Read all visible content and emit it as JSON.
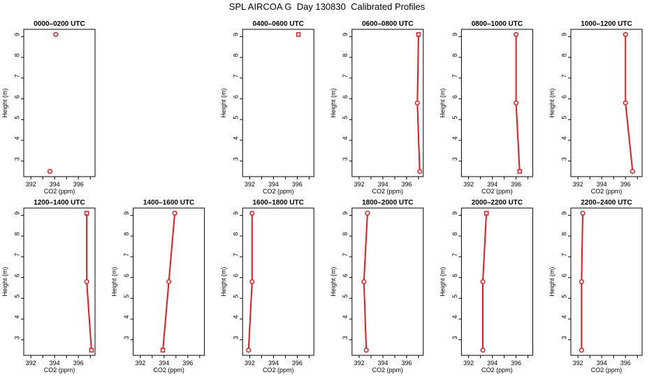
{
  "title": "SPL AIRCOA G  Day 130830  Calibrated Profiles",
  "chart_data": [
    {
      "type": "line",
      "title": "0000–0200 UTC",
      "xlabel": "CO2 (ppm)",
      "ylabel": "Height (m)",
      "x_ticks": [
        "392",
        "394",
        "396"
      ],
      "y_ticks": [
        "3",
        "4",
        "5",
        "6",
        "7",
        "8",
        "9"
      ],
      "xlim": [
        391.4,
        397.4
      ],
      "ylim": [
        2.25,
        9.35
      ],
      "grid": false,
      "series": [
        {
          "x": [
            393.6,
            394.1
          ],
          "y": [
            2.5,
            9.1
          ],
          "markers": [
            "circle",
            "circle"
          ],
          "connected": false
        }
      ]
    },
    {
      "type": "line",
      "title": "",
      "empty": true
    },
    {
      "type": "line",
      "title": "0400–0600 UTC",
      "xlabel": "CO2 (ppm)",
      "ylabel": "Height (m)",
      "x_ticks": [
        "392",
        "394",
        "396"
      ],
      "y_ticks": [
        "3",
        "4",
        "5",
        "6",
        "7",
        "8",
        "9"
      ],
      "xlim": [
        391.4,
        397.4
      ],
      "ylim": [
        2.25,
        9.35
      ],
      "grid": false,
      "series": [
        {
          "x": [
            396.1
          ],
          "y": [
            9.1
          ],
          "markers": [
            "square"
          ],
          "connected": false
        }
      ]
    },
    {
      "type": "line",
      "title": "0600–0800 UTC",
      "xlabel": "CO2 (ppm)",
      "ylabel": "Height (m)",
      "x_ticks": [
        "392",
        "394",
        "396"
      ],
      "y_ticks": [
        "3",
        "4",
        "5",
        "6",
        "7",
        "8",
        "9"
      ],
      "xlim": [
        391.4,
        397.4
      ],
      "ylim": [
        2.25,
        9.35
      ],
      "grid": false,
      "series": [
        {
          "x": [
            397.1,
            396.9,
            397.0
          ],
          "y": [
            2.5,
            5.8,
            9.1
          ],
          "markers": [
            "circle",
            "circle",
            "square"
          ],
          "connected": true
        }
      ]
    },
    {
      "type": "line",
      "title": "0800–1000 UTC",
      "xlabel": "CO2 (ppm)",
      "ylabel": "Height (m)",
      "x_ticks": [
        "392",
        "394",
        "396"
      ],
      "y_ticks": [
        "3",
        "4",
        "5",
        "6",
        "7",
        "8",
        "9"
      ],
      "xlim": [
        391.4,
        397.4
      ],
      "ylim": [
        2.25,
        9.35
      ],
      "grid": false,
      "series": [
        {
          "x": [
            396.3,
            396.0,
            396.0
          ],
          "y": [
            2.5,
            5.8,
            9.1
          ],
          "markers": [
            "square",
            "circle",
            "circle"
          ],
          "connected": true
        }
      ]
    },
    {
      "type": "line",
      "title": "1000–1200 UTC",
      "xlabel": "CO2 (ppm)",
      "ylabel": "Height (m)",
      "x_ticks": [
        "392",
        "394",
        "396"
      ],
      "y_ticks": [
        "3",
        "4",
        "5",
        "6",
        "7",
        "8",
        "9"
      ],
      "xlim": [
        391.4,
        397.4
      ],
      "ylim": [
        2.25,
        9.35
      ],
      "grid": false,
      "series": [
        {
          "x": [
            396.6,
            396.0,
            396.0
          ],
          "y": [
            2.5,
            5.8,
            9.1
          ],
          "markers": [
            "circle",
            "circle",
            "circle"
          ],
          "connected": true
        }
      ]
    },
    {
      "type": "line",
      "title": "1200–1400 UTC",
      "xlabel": "CO2 (ppm)",
      "ylabel": "Height (m)",
      "x_ticks": [
        "392",
        "394",
        "396"
      ],
      "y_ticks": [
        "3",
        "4",
        "5",
        "6",
        "7",
        "8",
        "9"
      ],
      "xlim": [
        391.4,
        397.4
      ],
      "ylim": [
        2.25,
        9.35
      ],
      "grid": false,
      "series": [
        {
          "x": [
            397.1,
            396.7,
            396.7
          ],
          "y": [
            2.5,
            5.8,
            9.1
          ],
          "markers": [
            "square",
            "circle",
            "square"
          ],
          "connected": true
        }
      ]
    },
    {
      "type": "line",
      "title": "1400–1600 UTC",
      "xlabel": "CO2 (ppm)",
      "ylabel": "Height (m)",
      "x_ticks": [
        "392",
        "394",
        "396"
      ],
      "y_ticks": [
        "3",
        "4",
        "5",
        "6",
        "7",
        "8",
        "9"
      ],
      "xlim": [
        391.4,
        397.4
      ],
      "ylim": [
        2.25,
        9.35
      ],
      "grid": false,
      "series": [
        {
          "x": [
            393.9,
            394.4,
            394.9
          ],
          "y": [
            2.5,
            5.8,
            9.1
          ],
          "markers": [
            "square",
            "circle",
            "circle"
          ],
          "connected": true
        }
      ]
    },
    {
      "type": "line",
      "title": "1600–1800 UTC",
      "xlabel": "CO2 (ppm)",
      "ylabel": "Height (m)",
      "x_ticks": [
        "392",
        "394",
        "396"
      ],
      "y_ticks": [
        "3",
        "4",
        "5",
        "6",
        "7",
        "8",
        "9"
      ],
      "xlim": [
        391.4,
        397.4
      ],
      "ylim": [
        2.25,
        9.35
      ],
      "grid": false,
      "series": [
        {
          "x": [
            391.9,
            392.2,
            392.2
          ],
          "y": [
            2.5,
            5.8,
            9.1
          ],
          "markers": [
            "circle",
            "circle",
            "circle"
          ],
          "connected": true
        }
      ]
    },
    {
      "type": "line",
      "title": "1800–2000 UTC",
      "xlabel": "CO2 (ppm)",
      "ylabel": "Height (m)",
      "x_ticks": [
        "392",
        "394",
        "396"
      ],
      "y_ticks": [
        "3",
        "4",
        "5",
        "6",
        "7",
        "8",
        "9"
      ],
      "xlim": [
        391.4,
        397.4
      ],
      "ylim": [
        2.25,
        9.35
      ],
      "grid": false,
      "series": [
        {
          "x": [
            392.6,
            392.4,
            392.7
          ],
          "y": [
            2.5,
            5.8,
            9.1
          ],
          "markers": [
            "circle",
            "circle",
            "circle"
          ],
          "connected": true
        }
      ]
    },
    {
      "type": "line",
      "title": "2000–2200 UTC",
      "xlabel": "CO2 (ppm)",
      "ylabel": "Height (m)",
      "x_ticks": [
        "392",
        "394",
        "396"
      ],
      "y_ticks": [
        "3",
        "4",
        "5",
        "6",
        "7",
        "8",
        "9"
      ],
      "xlim": [
        391.4,
        397.4
      ],
      "ylim": [
        2.25,
        9.35
      ],
      "grid": false,
      "series": [
        {
          "x": [
            393.2,
            393.2,
            393.5
          ],
          "y": [
            2.5,
            5.8,
            9.1
          ],
          "markers": [
            "circle",
            "circle",
            "square"
          ],
          "connected": true
        }
      ]
    },
    {
      "type": "line",
      "title": "2200–2400 UTC",
      "xlabel": "CO2 (ppm)",
      "ylabel": "Height (m)",
      "x_ticks": [
        "392",
        "394",
        "396"
      ],
      "y_ticks": [
        "3",
        "4",
        "5",
        "6",
        "7",
        "8",
        "9"
      ],
      "xlim": [
        391.4,
        397.4
      ],
      "ylim": [
        2.25,
        9.35
      ],
      "grid": false,
      "series": [
        {
          "x": [
            392.3,
            392.3,
            392.4
          ],
          "y": [
            2.5,
            5.8,
            9.1
          ],
          "markers": [
            "circle",
            "circle",
            "circle"
          ],
          "connected": true
        }
      ]
    }
  ],
  "colors": {
    "series": "#e8191b",
    "axis": "#000000"
  }
}
